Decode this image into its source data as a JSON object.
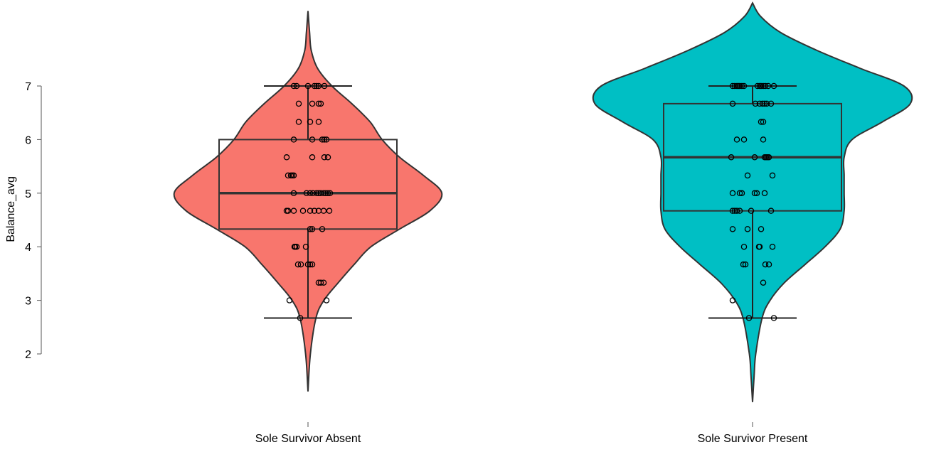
{
  "chart_data": {
    "type": "violin",
    "ylabel": "Balance_avg",
    "xlabel": "",
    "ylim": [
      1.2,
      8.6
    ],
    "yticks": [
      2,
      3,
      4,
      5,
      6,
      7
    ],
    "categories": [
      "Sole Survivor Absent",
      "Sole Survivor Present"
    ],
    "groups": [
      {
        "name": "Sole Survivor Absent",
        "color": "#F8766D",
        "violin_range": [
          1.3,
          8.4
        ],
        "box": {
          "whisker_low": 2.67,
          "q1": 4.33,
          "median": 5.0,
          "q3": 6.0,
          "whisker_high": 7.0
        },
        "density": [
          [
            1.3,
            0.0
          ],
          [
            2.0,
            0.03
          ],
          [
            2.67,
            0.1
          ],
          [
            3.0,
            0.2
          ],
          [
            3.33,
            0.38
          ],
          [
            3.67,
            0.58
          ],
          [
            4.0,
            0.79
          ],
          [
            4.33,
            1.15
          ],
          [
            4.67,
            1.53
          ],
          [
            5.0,
            1.68
          ],
          [
            5.33,
            1.45
          ],
          [
            5.67,
            1.15
          ],
          [
            6.0,
            0.93
          ],
          [
            6.33,
            0.78
          ],
          [
            6.67,
            0.55
          ],
          [
            7.0,
            0.3
          ],
          [
            7.33,
            0.12
          ],
          [
            7.67,
            0.04
          ],
          [
            8.0,
            0.02
          ],
          [
            8.4,
            0.0
          ]
        ],
        "points": [
          [
            -0.2,
            7
          ],
          [
            -0.16,
            7
          ],
          [
            0.0,
            7
          ],
          [
            0.09,
            7
          ],
          [
            0.12,
            7
          ],
          [
            0.15,
            7
          ],
          [
            0.23,
            7
          ],
          [
            -0.13,
            6.67
          ],
          [
            0.06,
            6.67
          ],
          [
            0.15,
            6.67
          ],
          [
            0.18,
            6.67
          ],
          [
            -0.13,
            6.33
          ],
          [
            0.03,
            6.33
          ],
          [
            0.15,
            6.33
          ],
          [
            -0.2,
            6
          ],
          [
            0.06,
            6
          ],
          [
            0.2,
            6
          ],
          [
            0.23,
            6
          ],
          [
            0.26,
            6
          ],
          [
            -0.3,
            5.67
          ],
          [
            0.06,
            5.67
          ],
          [
            0.23,
            5.67
          ],
          [
            0.28,
            5.67
          ],
          [
            -0.28,
            5.33
          ],
          [
            -0.24,
            5.33
          ],
          [
            -0.22,
            5.33
          ],
          [
            -0.2,
            5.33
          ],
          [
            -0.2,
            5
          ],
          [
            -0.02,
            5
          ],
          [
            0.03,
            5
          ],
          [
            0.07,
            5
          ],
          [
            0.12,
            5
          ],
          [
            0.15,
            5
          ],
          [
            0.18,
            5
          ],
          [
            0.22,
            5
          ],
          [
            0.25,
            5
          ],
          [
            0.28,
            5
          ],
          [
            0.31,
            5
          ],
          [
            -0.3,
            4.67
          ],
          [
            -0.28,
            4.67
          ],
          [
            -0.2,
            4.67
          ],
          [
            -0.07,
            4.67
          ],
          [
            0.03,
            4.67
          ],
          [
            0.09,
            4.67
          ],
          [
            0.15,
            4.67
          ],
          [
            0.22,
            4.67
          ],
          [
            0.3,
            4.67
          ],
          [
            0.03,
            4.33
          ],
          [
            0.06,
            4.33
          ],
          [
            0.2,
            4.33
          ],
          [
            -0.19,
            4
          ],
          [
            -0.18,
            4
          ],
          [
            -0.16,
            4
          ],
          [
            -0.03,
            4
          ],
          [
            -0.14,
            3.67
          ],
          [
            -0.1,
            3.67
          ],
          [
            0.0,
            3.67
          ],
          [
            0.03,
            3.67
          ],
          [
            0.06,
            3.67
          ],
          [
            0.15,
            3.33
          ],
          [
            0.18,
            3.33
          ],
          [
            0.22,
            3.33
          ],
          [
            -0.26,
            3
          ],
          [
            0.26,
            3
          ],
          [
            -0.11,
            2.67
          ]
        ]
      },
      {
        "name": "Sole Survivor Present",
        "color": "#00BFC4",
        "violin_range": [
          1.1,
          8.55
        ],
        "box": {
          "whisker_low": 2.67,
          "q1": 4.67,
          "median": 5.67,
          "q3": 6.67,
          "whisker_high": 7.0
        },
        "density": [
          [
            1.1,
            0.0
          ],
          [
            1.6,
            0.02
          ],
          [
            2.0,
            0.04
          ],
          [
            2.67,
            0.12
          ],
          [
            3.0,
            0.22
          ],
          [
            3.33,
            0.4
          ],
          [
            3.67,
            0.66
          ],
          [
            4.0,
            0.91
          ],
          [
            4.33,
            1.1
          ],
          [
            4.67,
            1.15
          ],
          [
            5.0,
            1.15
          ],
          [
            5.33,
            1.15
          ],
          [
            5.67,
            1.15
          ],
          [
            6.0,
            1.25
          ],
          [
            6.33,
            1.63
          ],
          [
            6.67,
            1.98
          ],
          [
            7.0,
            1.9
          ],
          [
            7.33,
            1.35
          ],
          [
            7.67,
            0.8
          ],
          [
            8.0,
            0.35
          ],
          [
            8.3,
            0.1
          ],
          [
            8.55,
            0.0
          ]
        ],
        "points": [
          [
            -0.28,
            7
          ],
          [
            -0.25,
            7
          ],
          [
            -0.22,
            7
          ],
          [
            -0.2,
            7
          ],
          [
            -0.18,
            7
          ],
          [
            -0.15,
            7
          ],
          [
            -0.12,
            7
          ],
          [
            0.07,
            7
          ],
          [
            0.1,
            7
          ],
          [
            0.12,
            7
          ],
          [
            0.15,
            7
          ],
          [
            0.18,
            7
          ],
          [
            0.22,
            7
          ],
          [
            0.3,
            7
          ],
          [
            -0.28,
            6.67
          ],
          [
            0.04,
            6.67
          ],
          [
            0.1,
            6.67
          ],
          [
            0.14,
            6.67
          ],
          [
            0.17,
            6.67
          ],
          [
            0.2,
            6.67
          ],
          [
            0.26,
            6.67
          ],
          [
            0.12,
            6.33
          ],
          [
            0.15,
            6.33
          ],
          [
            -0.22,
            6
          ],
          [
            -0.12,
            6
          ],
          [
            0.15,
            6
          ],
          [
            -0.3,
            5.67
          ],
          [
            0.03,
            5.67
          ],
          [
            0.17,
            5.67
          ],
          [
            0.19,
            5.67
          ],
          [
            0.21,
            5.67
          ],
          [
            0.23,
            5.67
          ],
          [
            -0.07,
            5.33
          ],
          [
            0.28,
            5.33
          ],
          [
            -0.28,
            5
          ],
          [
            -0.18,
            5
          ],
          [
            -0.15,
            5
          ],
          [
            0.03,
            5
          ],
          [
            0.06,
            5
          ],
          [
            0.17,
            5
          ],
          [
            -0.28,
            4.67
          ],
          [
            -0.25,
            4.67
          ],
          [
            -0.22,
            4.67
          ],
          [
            -0.18,
            4.67
          ],
          [
            -0.02,
            4.67
          ],
          [
            0.26,
            4.67
          ],
          [
            -0.28,
            4.33
          ],
          [
            -0.07,
            4.33
          ],
          [
            0.12,
            4.33
          ],
          [
            -0.12,
            4
          ],
          [
            0.09,
            4
          ],
          [
            0.1,
            4
          ],
          [
            0.28,
            4
          ],
          [
            -0.13,
            3.67
          ],
          [
            -0.1,
            3.67
          ],
          [
            0.18,
            3.67
          ],
          [
            0.23,
            3.67
          ],
          [
            0.15,
            3.33
          ],
          [
            -0.28,
            3
          ],
          [
            -0.05,
            2.67
          ],
          [
            0.3,
            2.67
          ]
        ]
      }
    ]
  }
}
